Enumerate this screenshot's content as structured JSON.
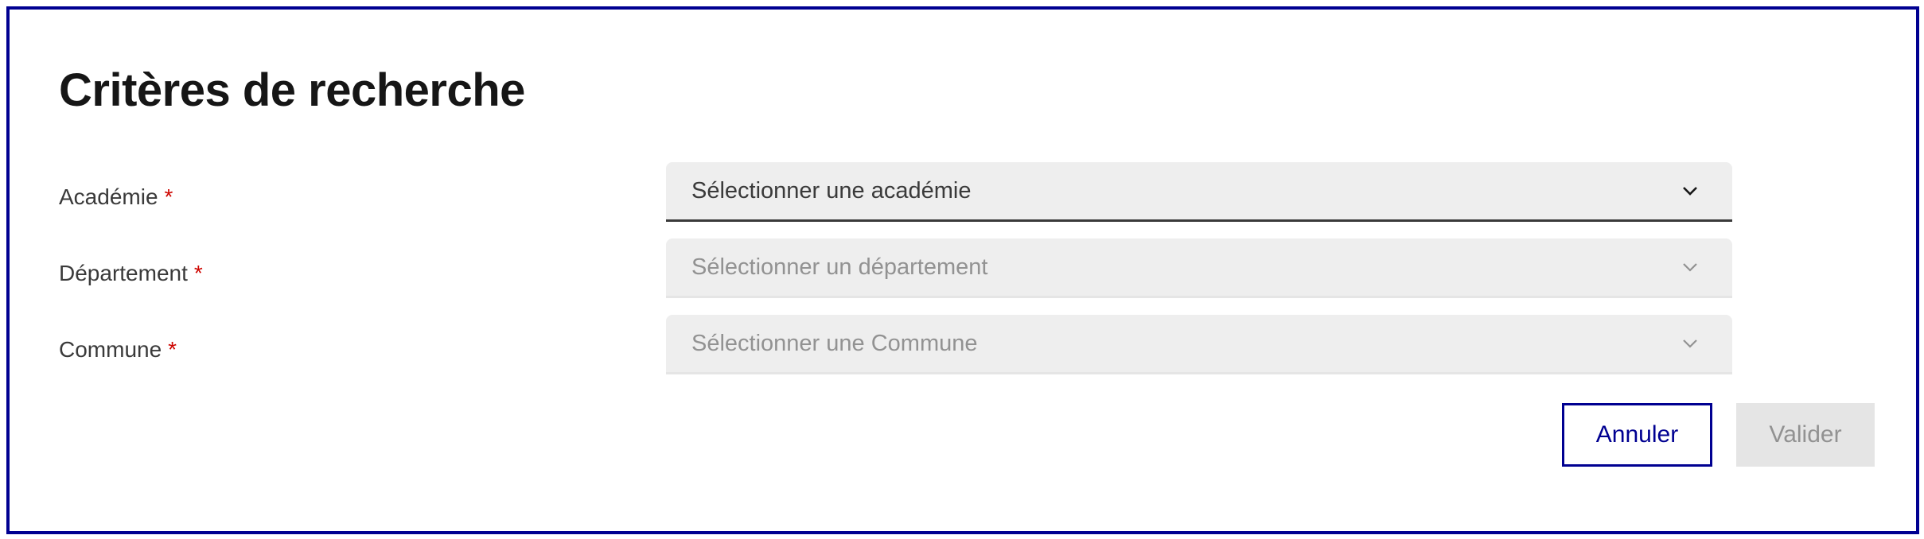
{
  "title": "Critères de recherche",
  "required_mark": "*",
  "fields": [
    {
      "label": "Académie",
      "placeholder": "Sélectionner une académie",
      "state": "enabled"
    },
    {
      "label": "Département",
      "placeholder": "Sélectionner un département",
      "state": "disabled"
    },
    {
      "label": "Commune",
      "placeholder": "Sélectionner une Commune",
      "state": "disabled"
    }
  ],
  "buttons": {
    "cancel": "Annuler",
    "submit": "Valider",
    "submit_state": "disabled"
  },
  "icons": {
    "select_arrow": "chevron-down-icon"
  },
  "colors": {
    "accent": "#000091",
    "required": "#ce0500",
    "field_bg": "#eeeeee",
    "disabled_text": "#929292"
  }
}
